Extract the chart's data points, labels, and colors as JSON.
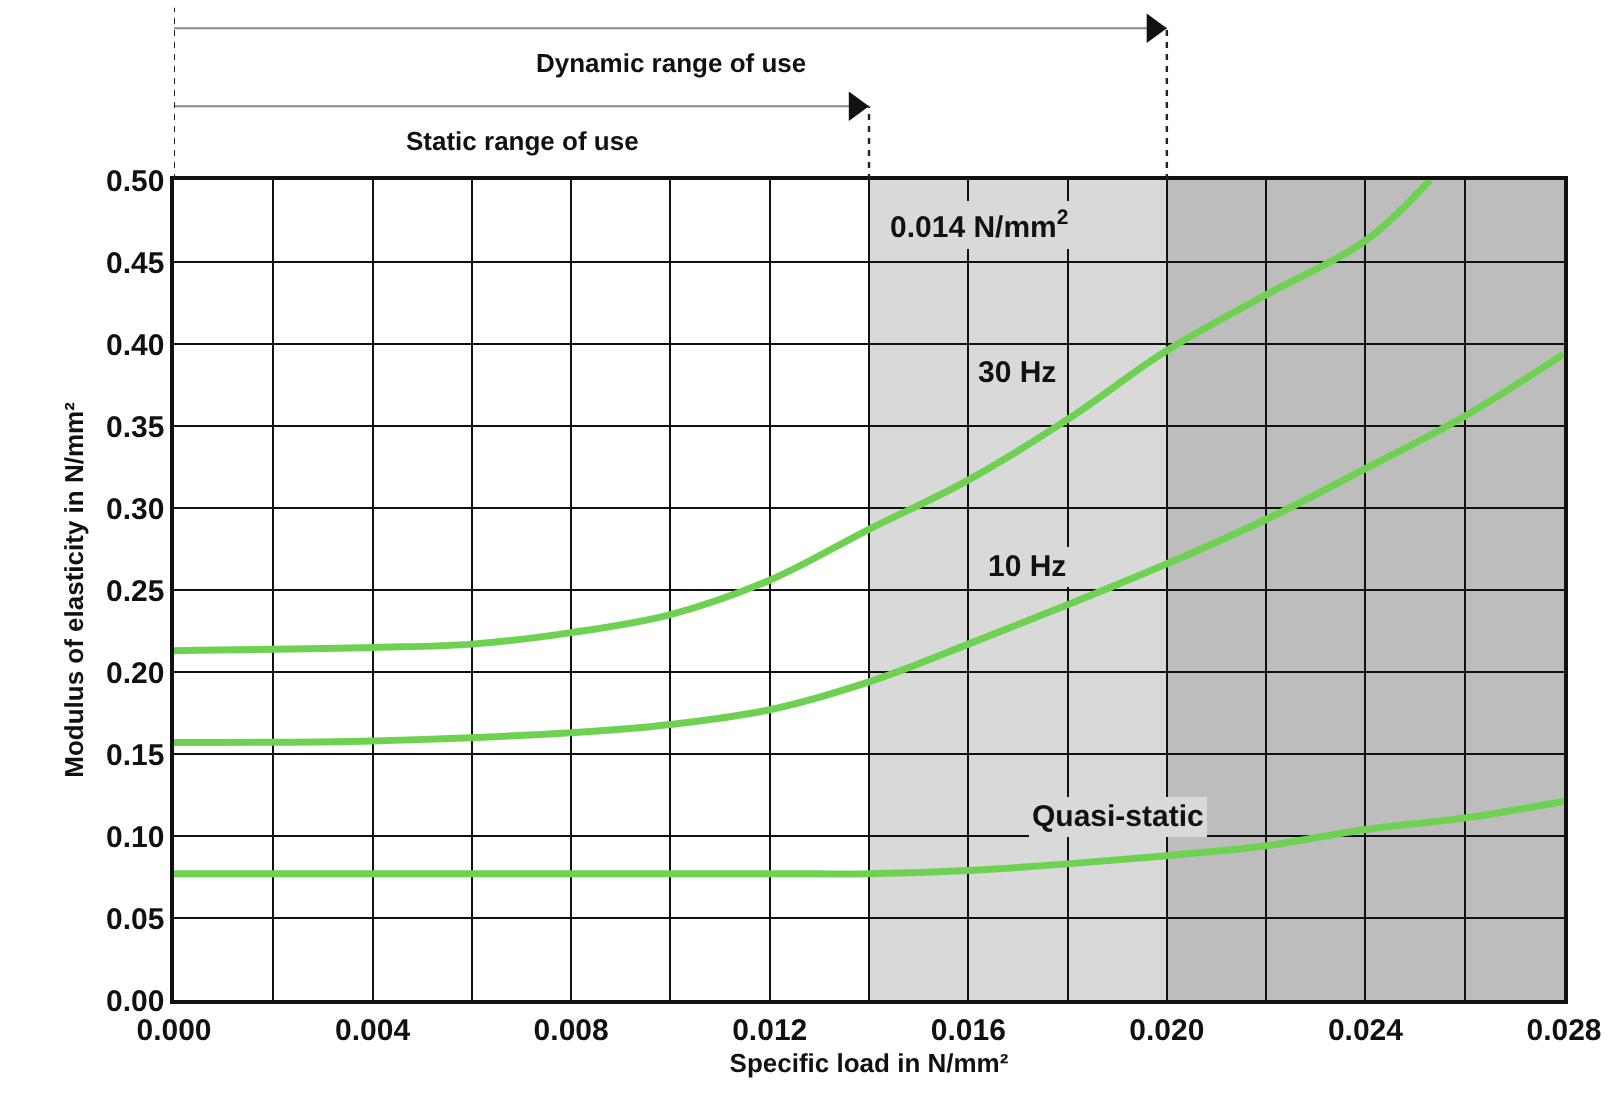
{
  "chart_data": {
    "type": "line",
    "xlabel": "Specific load in N/mm²",
    "ylabel": "Modulus of elasticity in N/mm²",
    "xlim": [
      0,
      0.028
    ],
    "ylim": [
      0,
      0.5
    ],
    "xticks": [
      {
        "value": 0,
        "label": "0.000"
      },
      {
        "value": 0.002,
        "label": null
      },
      {
        "value": 0.004,
        "label": "0.004"
      },
      {
        "value": 0.006,
        "label": null
      },
      {
        "value": 0.008,
        "label": "0.008"
      },
      {
        "value": 0.01,
        "label": null
      },
      {
        "value": 0.012,
        "label": "0.012"
      },
      {
        "value": 0.014,
        "label": null
      },
      {
        "value": 0.016,
        "label": "0.016"
      },
      {
        "value": 0.018,
        "label": null
      },
      {
        "value": 0.02,
        "label": "0.020"
      },
      {
        "value": 0.022,
        "label": null
      },
      {
        "value": 0.024,
        "label": "0.024"
      },
      {
        "value": 0.026,
        "label": null
      },
      {
        "value": 0.028,
        "label": "0.028"
      }
    ],
    "yticks": [
      {
        "value": 0,
        "label": "0.00"
      },
      {
        "value": 0.05,
        "label": "0.05"
      },
      {
        "value": 0.1,
        "label": "0.10"
      },
      {
        "value": 0.15,
        "label": "0.15"
      },
      {
        "value": 0.2,
        "label": "0.20"
      },
      {
        "value": 0.25,
        "label": "0.25"
      },
      {
        "value": 0.3,
        "label": "0.30"
      },
      {
        "value": 0.35,
        "label": "0.35"
      },
      {
        "value": 0.4,
        "label": "0.40"
      },
      {
        "value": 0.45,
        "label": "0.45"
      },
      {
        "value": 0.5,
        "label": "0.50"
      }
    ],
    "grid": true,
    "legend": false,
    "marker": "none",
    "line_style": "solid",
    "series": [
      {
        "name": "30 Hz",
        "color": "#6fd151",
        "x": [
          0,
          0.004,
          0.006,
          0.008,
          0.01,
          0.012,
          0.014,
          0.016,
          0.018,
          0.02,
          0.022,
          0.024,
          0.0253
        ],
        "values": [
          0.213,
          0.215,
          0.217,
          0.224,
          0.235,
          0.256,
          0.287,
          0.317,
          0.354,
          0.396,
          0.43,
          0.463,
          0.5
        ]
      },
      {
        "name": "10 Hz",
        "color": "#6fd151",
        "x": [
          0,
          0.004,
          0.008,
          0.01,
          0.012,
          0.014,
          0.016,
          0.018,
          0.02,
          0.022,
          0.024,
          0.026,
          0.028
        ],
        "values": [
          0.157,
          0.158,
          0.163,
          0.168,
          0.177,
          0.194,
          0.217,
          0.241,
          0.266,
          0.293,
          0.324,
          0.356,
          0.394
        ]
      },
      {
        "name": "Quasi-static",
        "color": "#6fd151",
        "x": [
          0,
          0.012,
          0.014,
          0.016,
          0.018,
          0.02,
          0.022,
          0.024,
          0.026,
          0.028
        ],
        "values": [
          0.077,
          0.077,
          0.077,
          0.079,
          0.083,
          0.088,
          0.094,
          0.104,
          0.111,
          0.121
        ]
      }
    ],
    "bands": [
      {
        "axis": "x",
        "from": 0.014,
        "to": 0.02,
        "color": "#d9d9d9"
      },
      {
        "axis": "x",
        "from": 0.02,
        "to": 0.028,
        "color": "#bdbdbd"
      }
    ],
    "annotations": [
      "0.014 N/mm$^{2}$",
      "Static range of use",
      "Dynamic range of use"
    ]
  }
}
